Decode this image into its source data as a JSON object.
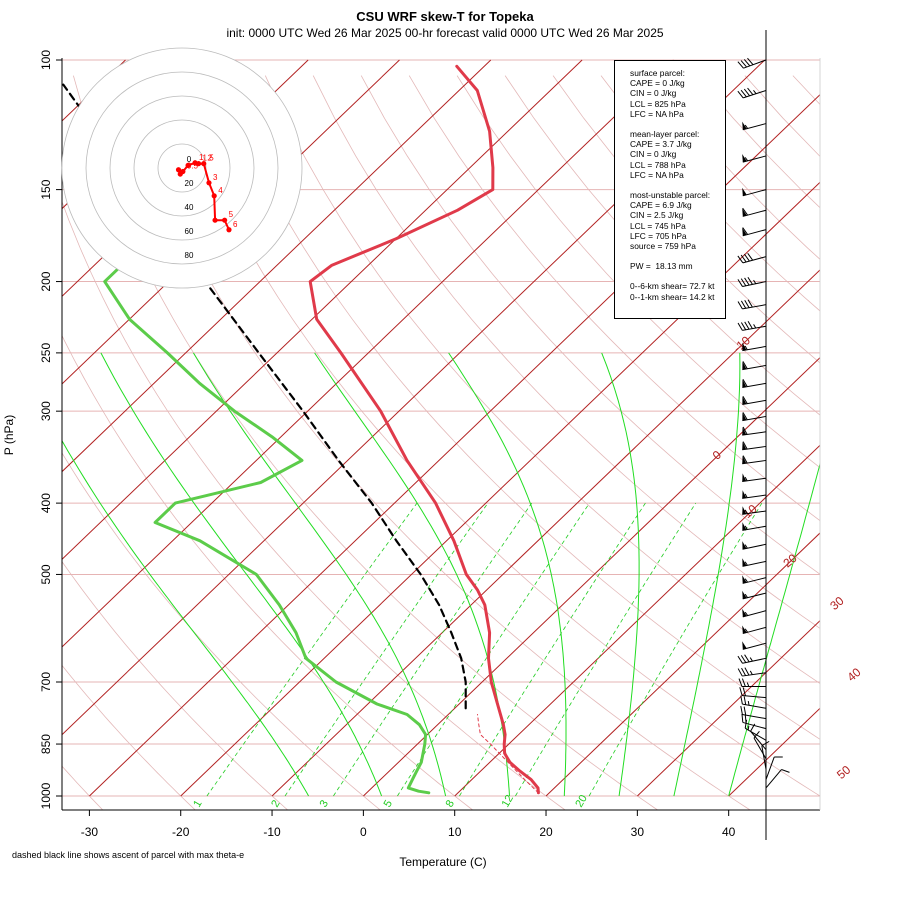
{
  "title": "CSU WRF skew-T for Topeka",
  "subtitle": "init: 0000 UTC  Wed 26 Mar 2025     00-hr forecast valid 0000 UTC  Wed 26 Mar 2025",
  "footnote": "dashed black line shows ascent of parcel with max theta-e",
  "colors": {
    "temperature": "#e03a4a",
    "dewpoint": "#5ccc4a",
    "isotherm": "#b22222",
    "isobar_grid": "#e6b4b4",
    "dry_adiabat": "#e3b8b8",
    "mixing_ratio": "#22cc22",
    "moist_adiabat": "#22dd22",
    "parcel": "#000000",
    "hodograph": "#ff0000"
  },
  "info_box": {
    "groups": [
      {
        "lines": [
          "surface parcel:",
          "CAPE = 0 J/kg",
          "CIN = 0 J/kg",
          "LCL = 825 hPa",
          "LFC = NA hPa"
        ]
      },
      {
        "lines": [
          "mean-layer parcel:",
          "CAPE = 3.7 J/kg",
          "CIN = 0 J/kg",
          "LCL = 788 hPa",
          "LFC = NA hPa"
        ]
      },
      {
        "lines": [
          "most-unstable parcel:",
          "CAPE = 6.9 J/kg",
          "CIN = 2.5 J/kg",
          "LCL = 745 hPa",
          "LFC = 705 hPa",
          "source = 759 hPa"
        ]
      },
      {
        "lines": [
          "PW =  18.13 mm"
        ]
      },
      {
        "lines": [
          "0--6-km shear= 72.7 kt",
          "0--1-km shear= 14.2 kt"
        ]
      }
    ]
  },
  "chart_data": {
    "type": "line",
    "title": "CSU WRF skew-T for Topeka",
    "xlabel": "Temperature (C)",
    "ylabel": "P (hPa)",
    "xlim": [
      -33,
      50
    ],
    "ylim": [
      1000,
      100
    ],
    "y_scale": "log",
    "x_ticks": [
      -30,
      -20,
      -10,
      0,
      10,
      20,
      30,
      40
    ],
    "y_ticks": [
      100,
      150,
      200,
      250,
      300,
      400,
      500,
      700,
      850,
      1000
    ],
    "isotherm_labels": [
      {
        "value": "-10",
        "at_pressure": 250
      },
      {
        "value": "0",
        "at_pressure": 350
      },
      {
        "value": "10",
        "at_pressure": 420
      },
      {
        "value": "20",
        "at_pressure": 490
      },
      {
        "value": "30",
        "at_pressure": 560
      },
      {
        "value": "40",
        "at_pressure": 700
      },
      {
        "value": "50",
        "at_pressure": 950
      }
    ],
    "mixing_ratio_labels": [
      "1",
      "2",
      "3",
      "5",
      "8",
      "12",
      "20"
    ],
    "series": [
      {
        "points": [
          {
            "p": 990,
            "t": 18.8
          },
          {
            "p": 975,
            "t": 18.2
          },
          {
            "p": 950,
            "t": 16.5
          },
          {
            "p": 925,
            "t": 14.3
          },
          {
            "p": 900,
            "t": 12.2
          },
          {
            "p": 875,
            "t": 10.6
          },
          {
            "p": 850,
            "t": 9.5
          },
          {
            "p": 825,
            "t": 8.5
          },
          {
            "p": 800,
            "t": 7.2
          },
          {
            "p": 750,
            "t": 4.2
          },
          {
            "p": 700,
            "t": 1.0
          },
          {
            "p": 650,
            "t": -2.0
          },
          {
            "p": 600,
            "t": -4.8
          },
          {
            "p": 550,
            "t": -8.5
          },
          {
            "p": 525,
            "t": -11.0
          },
          {
            "p": 500,
            "t": -14.0
          },
          {
            "p": 450,
            "t": -19.2
          },
          {
            "p": 400,
            "t": -25.5
          },
          {
            "p": 350,
            "t": -33.5
          },
          {
            "p": 300,
            "t": -42.0
          },
          {
            "p": 250,
            "t": -53.0
          },
          {
            "p": 225,
            "t": -59.5
          },
          {
            "p": 200,
            "t": -64.5
          },
          {
            "p": 190,
            "t": -64.0
          },
          {
            "p": 175,
            "t": -60.0
          },
          {
            "p": 160,
            "t": -56.5
          },
          {
            "p": 150,
            "t": -55.0
          },
          {
            "p": 140,
            "t": -57.5
          },
          {
            "p": 125,
            "t": -62.0
          },
          {
            "p": 110,
            "t": -68.0
          },
          {
            "p": 102,
            "t": -73.0
          }
        ]
      },
      {
        "points": [
          {
            "p": 990,
            "t": 6.8
          },
          {
            "p": 985,
            "t": 5.5
          },
          {
            "p": 975,
            "t": 4.0
          },
          {
            "p": 950,
            "t": 3.5
          },
          {
            "p": 925,
            "t": 3.0
          },
          {
            "p": 900,
            "t": 2.5
          },
          {
            "p": 850,
            "t": 0.8
          },
          {
            "p": 825,
            "t": -0.2
          },
          {
            "p": 800,
            "t": -2.0
          },
          {
            "p": 775,
            "t": -4.5
          },
          {
            "p": 750,
            "t": -9.0
          },
          {
            "p": 700,
            "t": -16.0
          },
          {
            "p": 650,
            "t": -22.0
          },
          {
            "p": 600,
            "t": -26.0
          },
          {
            "p": 550,
            "t": -31.0
          },
          {
            "p": 500,
            "t": -37.0
          },
          {
            "p": 450,
            "t": -47.0
          },
          {
            "p": 425,
            "t": -54.0
          },
          {
            "p": 400,
            "t": -54.0
          },
          {
            "p": 375,
            "t": -47.0
          },
          {
            "p": 350,
            "t": -45.0
          },
          {
            "p": 325,
            "t": -51.0
          },
          {
            "p": 300,
            "t": -58.0
          },
          {
            "p": 275,
            "t": -65.0
          },
          {
            "p": 250,
            "t": -72.0
          },
          {
            "p": 225,
            "t": -80.0
          },
          {
            "p": 200,
            "t": -87.0
          },
          {
            "p": 190,
            "t": -87.0
          },
          {
            "p": 175,
            "t": -85.0
          }
        ]
      },
      {
        "points": [
          {
            "p": 760,
            "t": 1.2
          },
          {
            "p": 700,
            "t": -1.8
          },
          {
            "p": 650,
            "t": -5.0
          },
          {
            "p": 600,
            "t": -9.0
          },
          {
            "p": 550,
            "t": -13.5
          },
          {
            "p": 500,
            "t": -19.0
          },
          {
            "p": 450,
            "t": -25.5
          },
          {
            "p": 400,
            "t": -32.5
          },
          {
            "p": 350,
            "t": -41.0
          },
          {
            "p": 300,
            "t": -50.5
          },
          {
            "p": 250,
            "t": -62.0
          },
          {
            "p": 200,
            "t": -76.0
          },
          {
            "p": 150,
            "t": -94.0
          },
          {
            "p": 125,
            "t": -105.0
          },
          {
            "p": 108,
            "t": -114.0
          }
        ]
      },
      {
        "points": [
          {
            "p": 990,
            "t": 18.8
          },
          {
            "p": 950,
            "t": 15.8
          },
          {
            "p": 900,
            "t": 12.0
          },
          {
            "p": 850,
            "t": 8.0
          },
          {
            "p": 825,
            "t": 5.8
          },
          {
            "p": 800,
            "t": 4.5
          },
          {
            "p": 775,
            "t": 3.2
          }
        ]
      }
    ],
    "hodograph": {
      "ring_labels": [
        "0",
        "20",
        "40",
        "60",
        "80"
      ],
      "points": [
        {
          "u": -2.0,
          "v": -1.0
        },
        {
          "u": -1.0,
          "v": -3.5
        },
        {
          "u": 0.5,
          "v": -2.0
        },
        {
          "u": 3.5,
          "v": 1.5
        },
        {
          "u": 7.5,
          "v": 3.0
        },
        {
          "u": 9.5,
          "v": 2.5
        },
        {
          "u": 12.5,
          "v": 2.5
        },
        {
          "u": 15.5,
          "v": -8.5
        },
        {
          "u": 18.5,
          "v": -16.0
        },
        {
          "u": 19.0,
          "v": -30.0
        },
        {
          "u": 24.5,
          "v": -30.0
        },
        {
          "u": 27.0,
          "v": -35.5
        }
      ],
      "labels": [
        "0.5",
        "1",
        "1.5",
        "2",
        "3",
        "4",
        "5",
        "6"
      ]
    },
    "wind_barbs": [
      {
        "p": 100,
        "dir": 250,
        "spd": 40
      },
      {
        "p": 110,
        "dir": 252,
        "spd": 45
      },
      {
        "p": 122,
        "dir": 255,
        "spd": 55
      },
      {
        "p": 135,
        "dir": 255,
        "spd": 55
      },
      {
        "p": 150,
        "dir": 255,
        "spd": 50
      },
      {
        "p": 160,
        "dir": 255,
        "spd": 60
      },
      {
        "p": 170,
        "dir": 255,
        "spd": 60
      },
      {
        "p": 185,
        "dir": 255,
        "spd": 40
      },
      {
        "p": 200,
        "dir": 258,
        "spd": 45
      },
      {
        "p": 215,
        "dir": 260,
        "spd": 40
      },
      {
        "p": 230,
        "dir": 260,
        "spd": 45
      },
      {
        "p": 245,
        "dir": 260,
        "spd": 55
      },
      {
        "p": 260,
        "dir": 260,
        "spd": 60
      },
      {
        "p": 275,
        "dir": 260,
        "spd": 60
      },
      {
        "p": 290,
        "dir": 260,
        "spd": 60
      },
      {
        "p": 305,
        "dir": 260,
        "spd": 60
      },
      {
        "p": 320,
        "dir": 262,
        "spd": 60
      },
      {
        "p": 335,
        "dir": 262,
        "spd": 60
      },
      {
        "p": 350,
        "dir": 262,
        "spd": 60
      },
      {
        "p": 370,
        "dir": 262,
        "spd": 55
      },
      {
        "p": 390,
        "dir": 262,
        "spd": 55
      },
      {
        "p": 410,
        "dir": 262,
        "spd": 55
      },
      {
        "p": 430,
        "dir": 260,
        "spd": 55
      },
      {
        "p": 455,
        "dir": 258,
        "spd": 55
      },
      {
        "p": 480,
        "dir": 258,
        "spd": 55
      },
      {
        "p": 505,
        "dir": 256,
        "spd": 55
      },
      {
        "p": 530,
        "dir": 256,
        "spd": 55
      },
      {
        "p": 560,
        "dir": 255,
        "spd": 55
      },
      {
        "p": 590,
        "dir": 255,
        "spd": 55
      },
      {
        "p": 620,
        "dir": 255,
        "spd": 50
      },
      {
        "p": 650,
        "dir": 258,
        "spd": 35
      },
      {
        "p": 680,
        "dir": 262,
        "spd": 35
      },
      {
        "p": 710,
        "dir": 270,
        "spd": 25
      },
      {
        "p": 735,
        "dir": 275,
        "spd": 20
      },
      {
        "p": 760,
        "dir": 280,
        "spd": 25
      },
      {
        "p": 785,
        "dir": 280,
        "spd": 20
      },
      {
        "p": 810,
        "dir": 285,
        "spd": 20
      },
      {
        "p": 840,
        "dir": 300,
        "spd": 15
      },
      {
        "p": 865,
        "dir": 320,
        "spd": 10
      },
      {
        "p": 890,
        "dir": 330,
        "spd": 10
      },
      {
        "p": 920,
        "dir": 350,
        "spd": 10
      },
      {
        "p": 950,
        "dir": 20,
        "spd": 10
      },
      {
        "p": 975,
        "dir": 40,
        "spd": 10
      }
    ]
  }
}
